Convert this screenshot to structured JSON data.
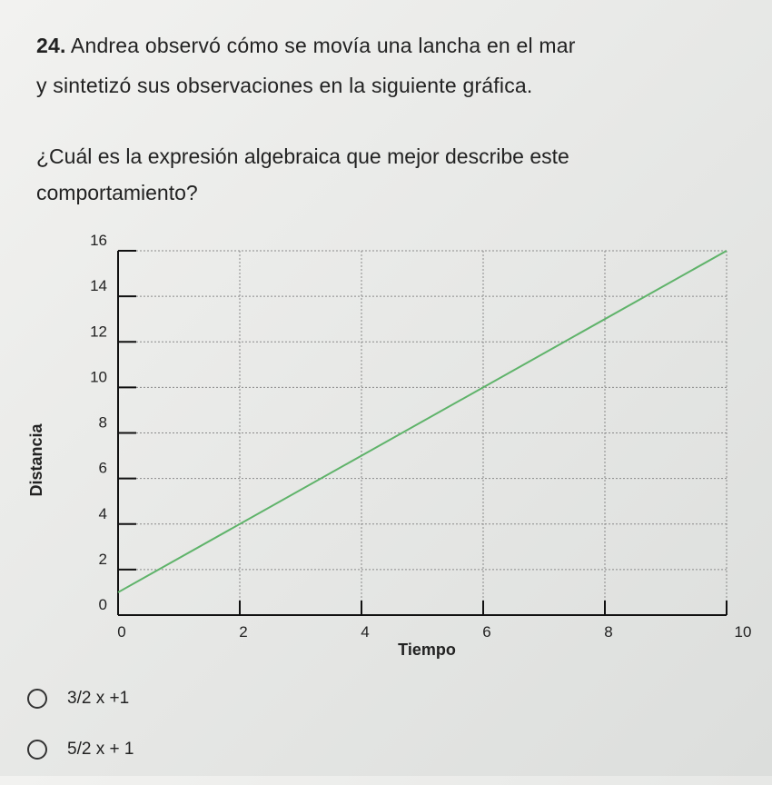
{
  "question": {
    "number": "24.",
    "text_line1": "Andrea observó cómo se movía una lancha en el mar",
    "text_line2": "y sintetizó sus observaciones en la siguiente gráfica.",
    "prompt_line1": "¿Cuál es la expresión algebraica que mejor describe este",
    "prompt_line2": "comportamiento?"
  },
  "chart_data": {
    "type": "line",
    "title": "",
    "xlabel": "Tiempo",
    "ylabel": "Distancia",
    "xlim": [
      0,
      10
    ],
    "ylim": [
      0,
      16
    ],
    "xticks": [
      0,
      2,
      4,
      6,
      8,
      10
    ],
    "yticks": [
      0,
      2,
      4,
      6,
      8,
      10,
      12,
      14,
      16
    ],
    "grid": true,
    "series": [
      {
        "x": [
          0,
          10
        ],
        "y": [
          1,
          16
        ],
        "color": "#5fb36a"
      }
    ]
  },
  "options": [
    {
      "label": "3/2 x +1"
    },
    {
      "label": "5/2 x + 1"
    }
  ]
}
